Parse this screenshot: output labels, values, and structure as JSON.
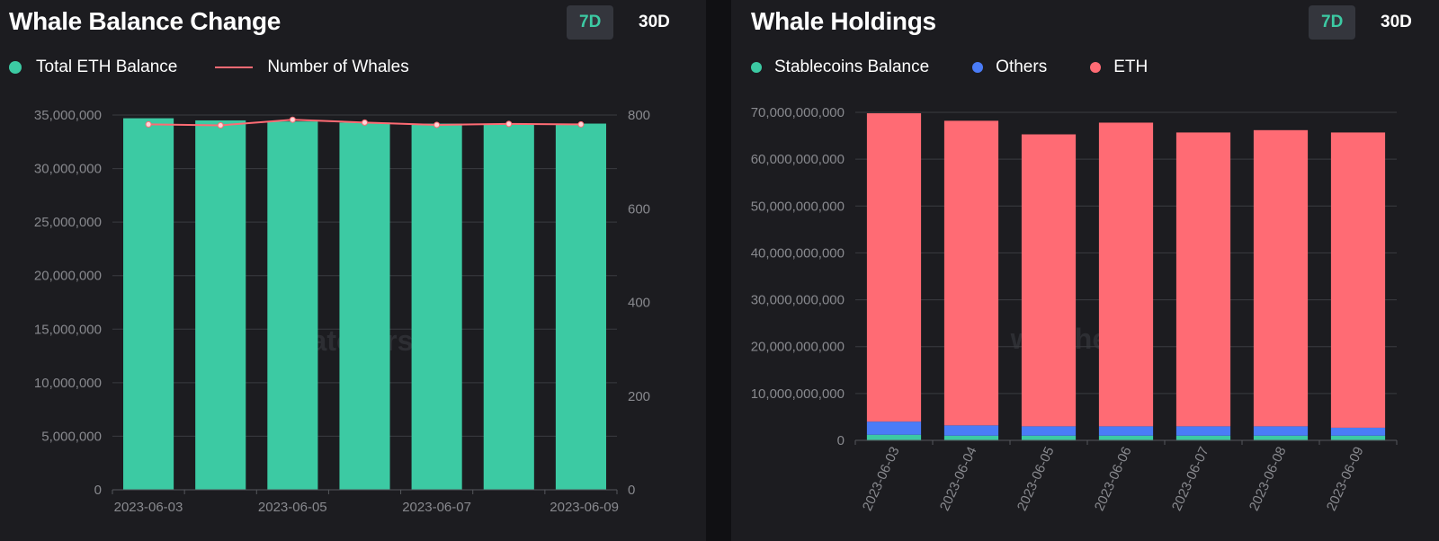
{
  "colors": {
    "teal": "#3ccaa3",
    "red": "#ff6b74",
    "blue": "#4a7cf7",
    "grid": "#3a3b40"
  },
  "watermark": "watchers",
  "left": {
    "title": "Whale Balance Change",
    "buttons": [
      {
        "label": "7D",
        "active": true
      },
      {
        "label": "30D",
        "active": false
      }
    ],
    "legend": [
      {
        "label": "Total ETH Balance",
        "icon": "dot",
        "color": "#3ccaa3"
      },
      {
        "label": "Number of Whales",
        "icon": "line",
        "color": "#ff6b74"
      }
    ]
  },
  "right": {
    "title": "Whale Holdings",
    "buttons": [
      {
        "label": "7D",
        "active": true
      },
      {
        "label": "30D",
        "active": false
      }
    ],
    "legend": [
      {
        "label": "Stablecoins Balance",
        "icon": "dot",
        "color": "#3ccaa3"
      },
      {
        "label": "Others",
        "icon": "dot",
        "color": "#4a7cf7"
      },
      {
        "label": "ETH",
        "icon": "dot",
        "color": "#ff6b74"
      }
    ]
  },
  "chart_data": [
    {
      "type": "bar",
      "title": "Whale Balance Change",
      "categories": [
        "2023-06-03",
        "2023-06-04",
        "2023-06-05",
        "2023-06-06",
        "2023-06-07",
        "2023-06-08",
        "2023-06-09"
      ],
      "x_tick_labels": [
        "2023-06-03",
        "2023-06-05",
        "2023-06-07",
        "2023-06-09"
      ],
      "series": [
        {
          "name": "Total ETH Balance",
          "type": "bar",
          "axis": "left",
          "values": [
            34700000,
            34500000,
            34400000,
            34300000,
            34200000,
            34200000,
            34200000
          ]
        },
        {
          "name": "Number of Whales",
          "type": "line",
          "axis": "right",
          "values": [
            780,
            778,
            790,
            784,
            779,
            781,
            780
          ]
        }
      ],
      "ylim": [
        0,
        35000000
      ],
      "y_ticks": [
        "0",
        "5,000,000",
        "10,000,000",
        "15,000,000",
        "20,000,000",
        "25,000,000",
        "30,000,000",
        "35,000,000"
      ],
      "y2lim": [
        0,
        800
      ],
      "y2_ticks": [
        "0",
        "200",
        "400",
        "600",
        "800"
      ],
      "grid": true,
      "legend_position": "top-left"
    },
    {
      "type": "bar",
      "stacked": true,
      "title": "Whale Holdings",
      "categories": [
        "2023-06-03",
        "2023-06-04",
        "2023-06-05",
        "2023-06-06",
        "2023-06-07",
        "2023-06-08",
        "2023-06-09"
      ],
      "series": [
        {
          "name": "Stablecoins Balance",
          "values": [
            1200000000,
            1000000000,
            1000000000,
            1000000000,
            1000000000,
            1000000000,
            1000000000
          ]
        },
        {
          "name": "Others",
          "values": [
            2800000000,
            2200000000,
            2000000000,
            2000000000,
            2000000000,
            2000000000,
            1700000000
          ]
        },
        {
          "name": "ETH",
          "values": [
            65800000000,
            65000000000,
            62300000000,
            64800000000,
            62700000000,
            63200000000,
            63000000000
          ]
        }
      ],
      "ylim": [
        0,
        70000000000
      ],
      "y_ticks": [
        "0",
        "10,000,000,000",
        "20,000,000,000",
        "30,000,000,000",
        "40,000,000,000",
        "50,000,000,000",
        "60,000,000,000",
        "70,000,000,000"
      ],
      "grid": true,
      "legend_position": "top-left"
    }
  ]
}
